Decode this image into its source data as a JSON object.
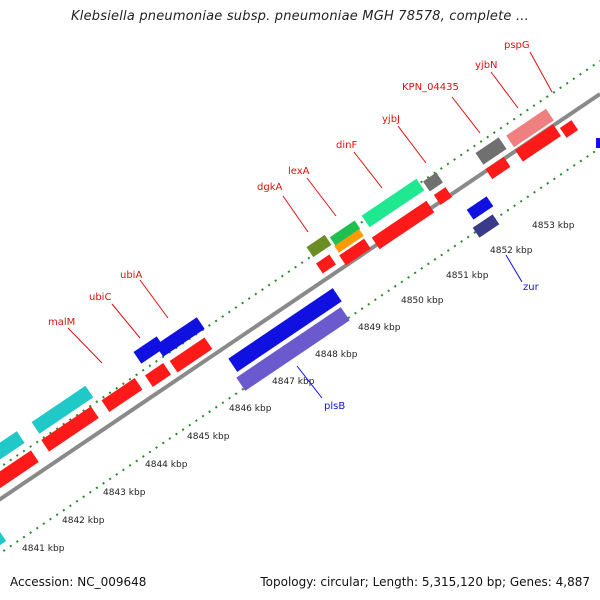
{
  "title": "Klebsiella pneumoniae subsp. pneumoniae MGH 78578, complete ...",
  "footer": {
    "accession": "Accession: NC_009648",
    "stats": "Topology: circular; Length: 5,315,120 bp; Genes: 4,887"
  },
  "kbp_labels": [
    "4841 kbp",
    "4842 kbp",
    "4843 kbp",
    "4844 kbp",
    "4845 kbp",
    "4846 kbp",
    "4847 kbp",
    "4848 kbp",
    "4849 kbp",
    "4850 kbp",
    "4851 kbp",
    "4852 kbp",
    "4853 kbp"
  ],
  "gene_labels": [
    "malM",
    "ubiC",
    "ubiA",
    "dgkA",
    "lexA",
    "dinF",
    "yjbJ",
    "KPN_04435",
    "yjbN",
    "pspG",
    "plsB",
    "zur"
  ],
  "colors": {
    "backbone": "#8a8a8a",
    "tick_green": "#2a8a2a",
    "cds_red": "#ff1a1a",
    "gene_blue": "#1010e0",
    "gene_cyan": "#20c8c8",
    "gene_green": "#20e890",
    "gene_olive": "#6b8e23",
    "gene_orange": "#ff9a00",
    "gene_gray": "#707070",
    "gene_pink": "#f08080",
    "gene_purple": "#6a5acd",
    "gene_navy": "#3a3a8a",
    "label_red": "#e01010",
    "label_blue": "#1010e0"
  }
}
